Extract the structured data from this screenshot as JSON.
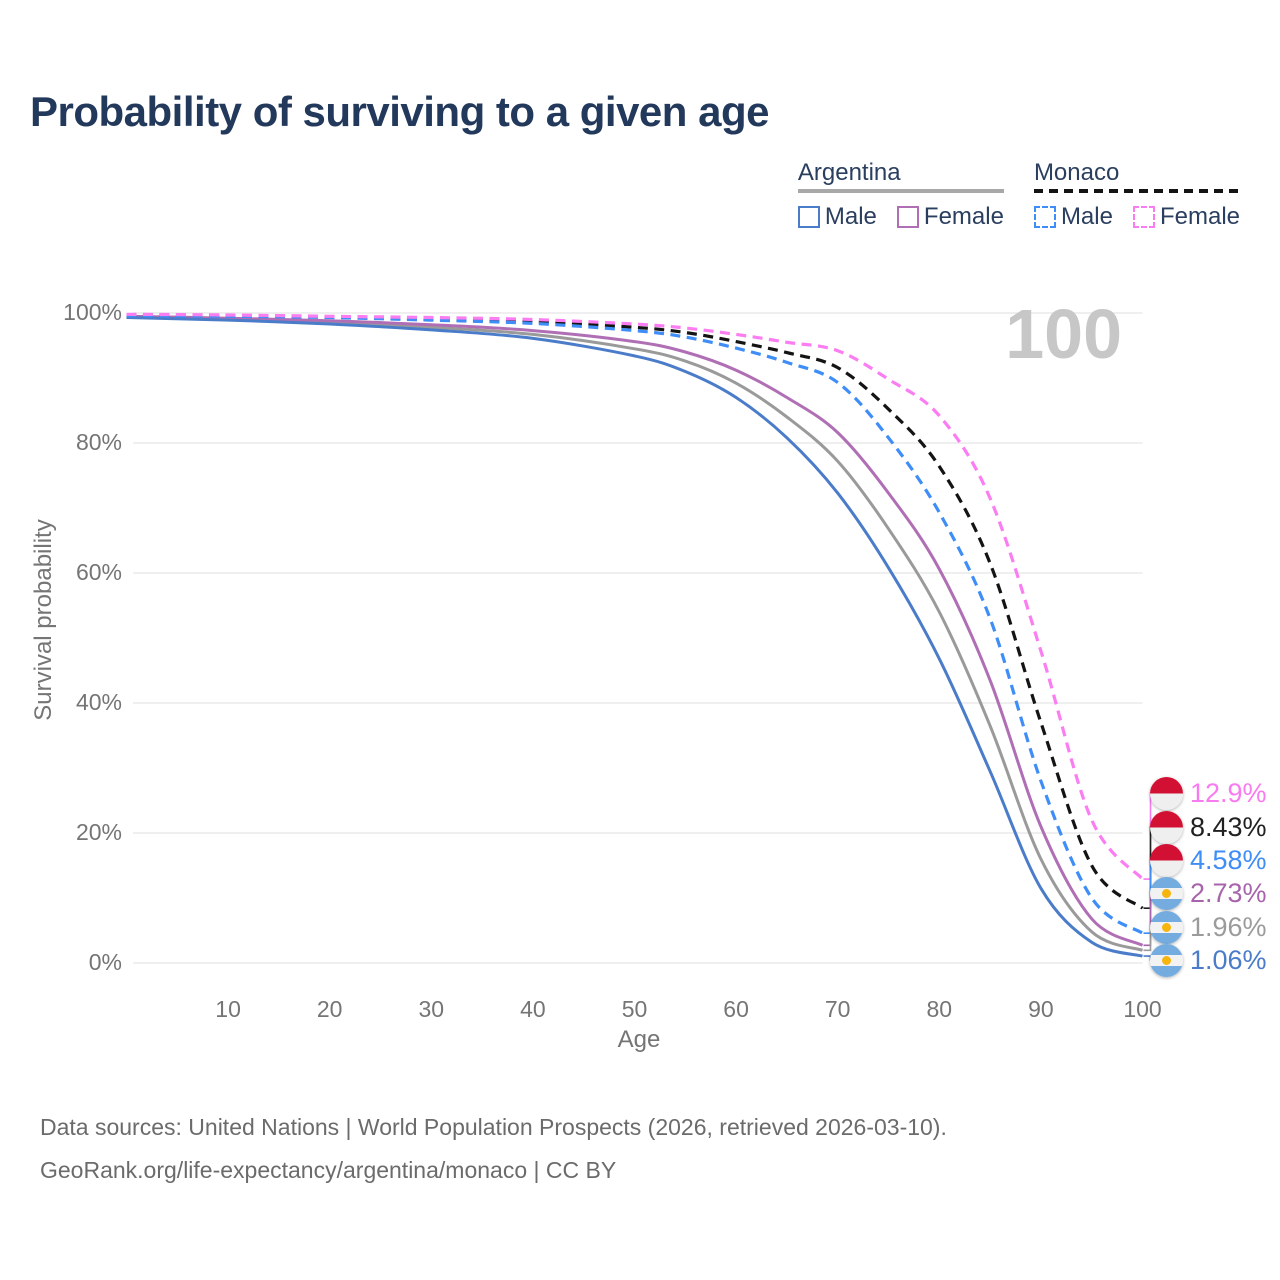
{
  "title": "Probability of surviving to a given age",
  "watermark": "100",
  "legend": {
    "groups": [
      {
        "country": "Argentina",
        "underline_style": "solid",
        "underline_color": "#a8a8a8",
        "items": [
          {
            "label": "Male",
            "color": "#4a7cc9",
            "dashed": false
          },
          {
            "label": "Female",
            "color": "#b06fb5",
            "dashed": false
          }
        ]
      },
      {
        "country": "Monaco",
        "underline_style": "dashed",
        "underline_color": "#141414",
        "items": [
          {
            "label": "Male",
            "color": "#3f8df6",
            "dashed": true
          },
          {
            "label": "Female",
            "color": "#fb7df2",
            "dashed": true
          }
        ]
      }
    ]
  },
  "axes": {
    "y_label": "Survival probability",
    "x_label": "Age",
    "y_ticks": [
      "100%",
      "80%",
      "60%",
      "40%",
      "20%",
      "0%"
    ],
    "x_ticks": [
      "10",
      "20",
      "30",
      "40",
      "50",
      "60",
      "70",
      "80",
      "90",
      "100"
    ]
  },
  "chart_data": {
    "type": "line",
    "title": "Probability of surviving to a given age",
    "xlabel": "Age",
    "ylabel": "Survival probability",
    "xlim": [
      0,
      100
    ],
    "ylim": [
      0,
      100
    ],
    "grid": "horizontal",
    "legend_position": "top-right",
    "x": [
      0,
      10,
      20,
      30,
      40,
      50,
      55,
      60,
      65,
      70,
      75,
      80,
      85,
      90,
      95,
      100
    ],
    "series": [
      {
        "id": "argentina-total",
        "label": "Argentina - Total",
        "country": "Argentina",
        "sex": "Total",
        "color": "#9a9a9a",
        "dash": false,
        "end_label": "1.96%",
        "end_label_color": "#9b9b9b",
        "values": [
          99.4,
          99.0,
          98.6,
          97.8,
          96.7,
          94.5,
          92.6,
          89.2,
          84.0,
          77.2,
          66.8,
          54.0,
          36.5,
          16.0,
          4.8,
          1.96
        ]
      },
      {
        "id": "argentina-female",
        "label": "Argentina - Female",
        "country": "Argentina",
        "sex": "Female",
        "color": "#b06fb5",
        "dash": false,
        "end_label": "2.73%",
        "end_label_color": "#a763ab",
        "values": [
          99.5,
          99.2,
          98.8,
          98.2,
          97.3,
          95.6,
          94.0,
          91.2,
          87.0,
          81.6,
          72.3,
          60.6,
          43.5,
          21.0,
          6.8,
          2.73
        ]
      },
      {
        "id": "argentina-male",
        "label": "Argentina - Male",
        "country": "Argentina",
        "sex": "Male",
        "color": "#4a7cc9",
        "dash": false,
        "end_label": "1.06%",
        "end_label_color": "#4a7cc9",
        "values": [
          99.3,
          98.9,
          98.3,
          97.4,
          96.1,
          93.4,
          91.0,
          87.0,
          80.8,
          72.3,
          60.8,
          46.8,
          29.5,
          11.5,
          3.2,
          1.06
        ]
      },
      {
        "id": "monaco-total",
        "label": "Monaco - Total",
        "country": "Monaco",
        "sex": "Total",
        "color": "#141414",
        "dash": true,
        "end_label": "8.43%",
        "end_label_color": "#212121",
        "values": [
          99.7,
          99.6,
          99.4,
          99.1,
          98.7,
          97.8,
          97.0,
          95.6,
          93.9,
          91.6,
          85.2,
          76.4,
          61.5,
          37.0,
          15.0,
          8.43
        ]
      },
      {
        "id": "monaco-male",
        "label": "Monaco - Male",
        "country": "Monaco",
        "sex": "Male",
        "color": "#3f8df6",
        "dash": true,
        "end_label": "4.58%",
        "end_label_color": "#3f8df6",
        "values": [
          99.6,
          99.5,
          99.3,
          98.9,
          98.4,
          97.3,
          96.3,
          94.6,
          92.4,
          89.3,
          80.8,
          69.3,
          53.0,
          28.0,
          10.0,
          4.58
        ]
      },
      {
        "id": "monaco-female",
        "label": "Monaco - Female",
        "country": "Monaco",
        "sex": "Female",
        "color": "#fb7df2",
        "dash": true,
        "end_label": "12.9%",
        "end_label_color": "#f87bef",
        "values": [
          99.8,
          99.7,
          99.5,
          99.3,
          99.0,
          98.3,
          97.7,
          96.7,
          95.5,
          94.2,
          89.8,
          84.2,
          71.5,
          48.0,
          22.0,
          12.9
        ]
      }
    ]
  },
  "end_labels": [
    {
      "series": "monaco-female",
      "value": "12.9%",
      "flag": "monaco"
    },
    {
      "series": "monaco-total",
      "value": "8.43%",
      "flag": "monaco"
    },
    {
      "series": "monaco-male",
      "value": "4.58%",
      "flag": "monaco"
    },
    {
      "series": "argentina-female",
      "value": "2.73%",
      "flag": "argentina"
    },
    {
      "series": "argentina-total",
      "value": "1.96%",
      "flag": "argentina"
    },
    {
      "series": "argentina-male",
      "value": "1.06%",
      "flag": "argentina"
    }
  ],
  "flags": {
    "monaco": {
      "red": "#d21034",
      "white": "#efefef"
    },
    "argentina": {
      "blue": "#74acdf",
      "white": "#f2f2f2",
      "sun": "#f6b40e"
    }
  },
  "colors": {
    "title": "#22395c",
    "gridline": "#eaeaea",
    "axis_text": "#757575",
    "watermark": "#c7c7c7",
    "footer_text": "#6b6b6b"
  },
  "footer": {
    "line1": "Data sources: United Nations | World Population Prospects (2026, retrieved 2026-03-10).",
    "line2": "GeoRank.org/life-expectancy/argentina/monaco | CC BY"
  }
}
